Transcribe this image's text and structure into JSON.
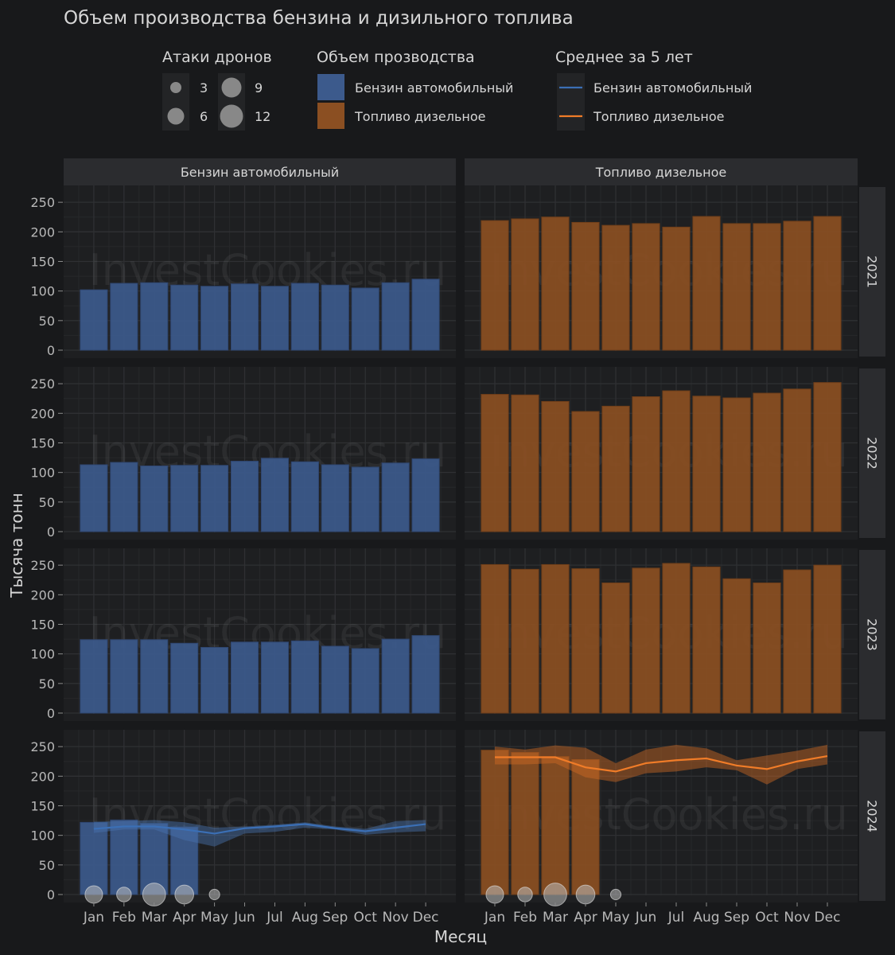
{
  "chart_data": {
    "type": "bar",
    "title": "Объем производства бензина и дизильного топлива",
    "xlabel": "Месяц",
    "ylabel": "Тысяча тонн",
    "months": [
      "Jan",
      "Feb",
      "Mar",
      "Apr",
      "May",
      "Jun",
      "Jul",
      "Aug",
      "Sep",
      "Oct",
      "Nov",
      "Dec"
    ],
    "facet_columns": [
      "Бензин автомобильный",
      "Топливо дизельное"
    ],
    "facet_rows": [
      "2021",
      "2022",
      "2023",
      "2024"
    ],
    "ylim": [
      0,
      265
    ],
    "y_ticks": [
      0,
      50,
      100,
      150,
      200,
      250
    ],
    "grid": true,
    "legend": {
      "drones": {
        "title": "Атаки дронов",
        "sizes": [
          3,
          6,
          9,
          12
        ]
      },
      "production": {
        "title": "Объем прозводства",
        "items": [
          {
            "label": "Бензин автомобильный",
            "color": "#3c5a8c"
          },
          {
            "label": "Топливо дизельное",
            "color": "#8b4f22"
          }
        ]
      },
      "average": {
        "title": "Среднее за 5 лет",
        "items": [
          {
            "label": "Бензин автомобильный",
            "color": "#3b6fb5"
          },
          {
            "label": "Топливо дизельное",
            "color": "#f07c28"
          }
        ]
      }
    },
    "series": {
      "Бензин автомобильный": {
        "2021": [
          102,
          113,
          114,
          110,
          108,
          112,
          108,
          113,
          110,
          105,
          114,
          120
        ],
        "2022": [
          113,
          117,
          111,
          112,
          112,
          119,
          124,
          118,
          113,
          109,
          116,
          123
        ],
        "2023": [
          124,
          124,
          124,
          118,
          111,
          120,
          120,
          122,
          113,
          109,
          125,
          131
        ],
        "2024": [
          122,
          126,
          120,
          114
        ]
      },
      "Топливо дизельное": {
        "2021": [
          219,
          222,
          225,
          216,
          211,
          214,
          208,
          226,
          214,
          214,
          218,
          226
        ],
        "2022": [
          232,
          231,
          220,
          203,
          212,
          228,
          238,
          229,
          226,
          234,
          241,
          252
        ],
        "2023": [
          251,
          243,
          251,
          244,
          220,
          245,
          253,
          247,
          227,
          220,
          242,
          250
        ],
        "2024": [
          244,
          240,
          233,
          228
        ]
      }
    },
    "five_year_average": {
      "Бензин автомобильный": {
        "mean": [
          111,
          115,
          115,
          110,
          103,
          112,
          115,
          119,
          112,
          107,
          113,
          119
        ],
        "low": [
          104,
          110,
          110,
          92,
          81,
          103,
          106,
          113,
          110,
          101,
          105,
          107
        ],
        "high": [
          123,
          124,
          126,
          122,
          113,
          115,
          118,
          122,
          115,
          111,
          124,
          126
        ]
      },
      "Топливо дизельное": {
        "mean": [
          232,
          232,
          232,
          215,
          208,
          222,
          227,
          230,
          218,
          212,
          225,
          234
        ],
        "low": [
          220,
          220,
          222,
          198,
          190,
          205,
          208,
          215,
          210,
          186,
          212,
          220
        ],
        "high": [
          250,
          245,
          252,
          248,
          222,
          245,
          253,
          247,
          227,
          235,
          243,
          253
        ]
      }
    },
    "drone_attacks_2024": [
      5,
      3,
      10,
      6,
      1
    ]
  },
  "watermark": "InvestCookies.ru"
}
